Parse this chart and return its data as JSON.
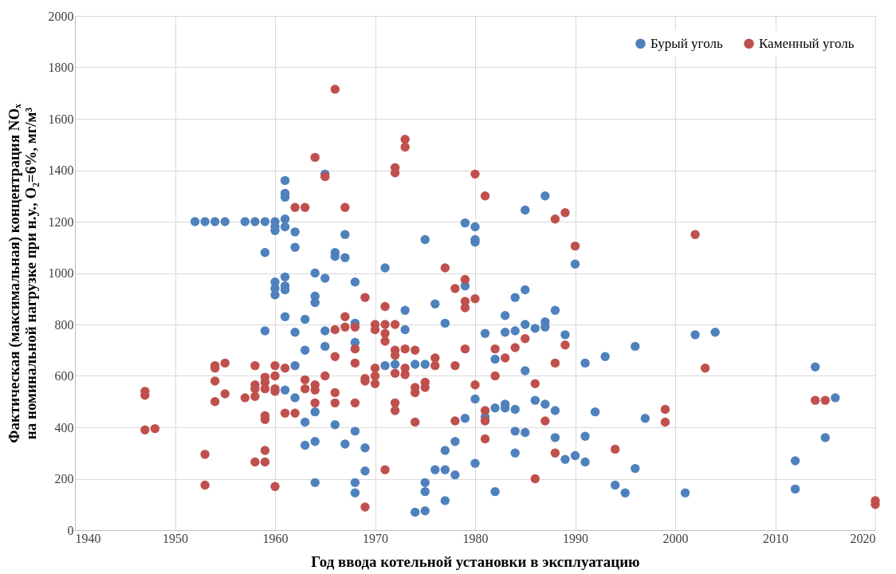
{
  "chart_data": {
    "type": "scatter",
    "xlabel": "Год ввода котельной установки в эксплуатацию",
    "ylabel": "Фактическая (максимальная) концентрация NOₓ\nна номинальной нагрузке при н.у., O₂=6%, мг/м³",
    "xlim": [
      1940,
      2020
    ],
    "xticks": [
      1940,
      1950,
      1960,
      1970,
      1980,
      1990,
      2000,
      2010,
      2020
    ],
    "ylim": [
      0,
      2000
    ],
    "yticks": [
      0,
      200,
      400,
      600,
      800,
      1000,
      1200,
      1400,
      1600,
      1800,
      2000
    ],
    "grid": true,
    "legend": "top right",
    "marker": "circle",
    "series": [
      {
        "name": "Бурый уголь",
        "color": "#4f81bd",
        "x": [
          1952,
          1953,
          1954,
          1955,
          1957,
          1958,
          1959,
          1960,
          1959,
          1959,
          1960,
          1960,
          1960,
          1960,
          1960,
          1961,
          1961,
          1961,
          1961,
          1961,
          1961,
          1961,
          1961,
          1961,
          1961,
          1962,
          1962,
          1962,
          1962,
          1962,
          1963,
          1963,
          1963,
          1963,
          1964,
          1964,
          1964,
          1964,
          1964,
          1964,
          1965,
          1965,
          1965,
          1965,
          1966,
          1966,
          1966,
          1967,
          1967,
          1967,
          1968,
          1968,
          1968,
          1968,
          1968,
          1968,
          1969,
          1969,
          1971,
          1971,
          1972,
          1973,
          1973,
          1974,
          1974,
          1975,
          1975,
          1975,
          1975,
          1975,
          1976,
          1976,
          1977,
          1977,
          1977,
          1977,
          1978,
          1978,
          1979,
          1979,
          1979,
          1980,
          1980,
          1980,
          1980,
          1980,
          1981,
          1981,
          1982,
          1982,
          1982,
          1983,
          1983,
          1983,
          1983,
          1984,
          1984,
          1984,
          1984,
          1984,
          1985,
          1985,
          1985,
          1985,
          1985,
          1986,
          1986,
          1987,
          1987,
          1987,
          1987,
          1988,
          1988,
          1988,
          1989,
          1989,
          1990,
          1990,
          1991,
          1991,
          1991,
          1992,
          1993,
          1994,
          1995,
          1996,
          1996,
          1997,
          2001,
          2002,
          2004,
          2012,
          2012,
          2014,
          2015,
          2016
        ],
        "values": [
          1200,
          1200,
          1200,
          1200,
          1200,
          1200,
          1200,
          1200,
          1080,
          775,
          1180,
          1165,
          965,
          940,
          915,
          1360,
          1310,
          1295,
          1210,
          1180,
          985,
          950,
          935,
          830,
          545,
          1160,
          1100,
          770,
          640,
          515,
          820,
          700,
          420,
          330,
          1000,
          910,
          885,
          460,
          345,
          185,
          1385,
          980,
          775,
          715,
          1080,
          1065,
          410,
          1150,
          1060,
          335,
          965,
          805,
          730,
          385,
          185,
          145,
          320,
          230,
          1020,
          640,
          645,
          855,
          780,
          645,
          70,
          1130,
          645,
          185,
          150,
          75,
          880,
          235,
          805,
          310,
          235,
          115,
          345,
          215,
          1195,
          950,
          435,
          1180,
          1130,
          1120,
          510,
          260,
          765,
          440,
          665,
          475,
          150,
          835,
          770,
          490,
          475,
          905,
          775,
          470,
          385,
          300,
          1245,
          935,
          800,
          620,
          380,
          785,
          505,
          1300,
          810,
          790,
          490,
          855,
          465,
          360,
          760,
          275,
          1035,
          290,
          650,
          365,
          265,
          460,
          675,
          175,
          145,
          715,
          240,
          435,
          145,
          760,
          770,
          270,
          160,
          635,
          360,
          515
        ]
      },
      {
        "name": "Каменный уголь",
        "color": "#c0504d",
        "x": [
          1947,
          1947,
          1947,
          1948,
          1953,
          1953,
          1954,
          1954,
          1954,
          1954,
          1955,
          1955,
          1957,
          1958,
          1958,
          1958,
          1958,
          1958,
          1959,
          1959,
          1959,
          1959,
          1959,
          1959,
          1959,
          1960,
          1960,
          1960,
          1960,
          1960,
          1961,
          1961,
          1962,
          1962,
          1963,
          1963,
          1963,
          1964,
          1964,
          1964,
          1964,
          1965,
          1965,
          1966,
          1966,
          1966,
          1966,
          1966,
          1967,
          1967,
          1967,
          1968,
          1968,
          1968,
          1968,
          1969,
          1969,
          1969,
          1969,
          1970,
          1970,
          1970,
          1970,
          1970,
          1971,
          1971,
          1971,
          1971,
          1971,
          1972,
          1972,
          1972,
          1972,
          1972,
          1972,
          1972,
          1972,
          1973,
          1973,
          1973,
          1973,
          1973,
          1974,
          1974,
          1974,
          1974,
          1975,
          1975,
          1976,
          1976,
          1977,
          1978,
          1978,
          1978,
          1979,
          1979,
          1979,
          1979,
          1980,
          1980,
          1980,
          1981,
          1981,
          1981,
          1981,
          1982,
          1982,
          1983,
          1984,
          1985,
          1986,
          1986,
          1987,
          1988,
          1988,
          1988,
          1989,
          1989,
          1990,
          1994,
          1999,
          1999,
          2002,
          2003,
          2014,
          2015,
          2020,
          2020
        ],
        "values": [
          540,
          525,
          390,
          395,
          295,
          175,
          640,
          630,
          580,
          500,
          650,
          530,
          515,
          640,
          565,
          550,
          520,
          265,
          595,
          575,
          550,
          445,
          430,
          310,
          265,
          640,
          600,
          550,
          540,
          170,
          630,
          455,
          1255,
          455,
          1255,
          585,
          550,
          1450,
          565,
          545,
          495,
          1375,
          600,
          1715,
          780,
          675,
          535,
          495,
          1255,
          830,
          790,
          790,
          705,
          650,
          495,
          905,
          590,
          580,
          90,
          800,
          780,
          630,
          600,
          570,
          870,
          800,
          765,
          735,
          235,
          1410,
          1390,
          800,
          700,
          680,
          610,
          495,
          465,
          1520,
          1490,
          705,
          630,
          605,
          700,
          555,
          535,
          420,
          575,
          555,
          670,
          640,
          1020,
          940,
          640,
          425,
          975,
          890,
          865,
          705,
          1385,
          900,
          565,
          1300,
          465,
          425,
          355,
          705,
          600,
          670,
          710,
          745,
          570,
          200,
          425,
          1210,
          650,
          300,
          1235,
          720,
          1105,
          315,
          470,
          420,
          1150,
          630,
          505,
          505,
          115,
          100
        ]
      }
    ]
  }
}
